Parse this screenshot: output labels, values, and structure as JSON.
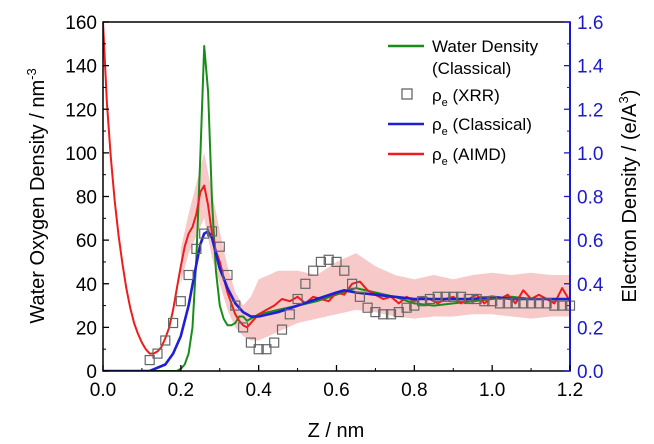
{
  "colors": {
    "water": "#1a8c1a",
    "xrr": "#666666",
    "classical": "#1f1fd6",
    "aimd": "#ee1c1c",
    "aimd_band": "#f6c0c0",
    "right_axis": "#1a1acc"
  },
  "chart_data": {
    "type": "line",
    "xlabel": "Z / nm",
    "ylabel_left": "Water Oxygen Density / nm⁻³",
    "ylabel_left_main": "Water Oxygen Density / nm",
    "ylabel_left_sup": "-3",
    "ylabel_right": "Electron Density / (e/Å³)",
    "ylabel_right_main": "Electron Density / (e/A",
    "ylabel_right_sup": "3",
    "ylabel_right_end": ")",
    "xlim": [
      0,
      1.2
    ],
    "ylim_left": [
      0,
      160
    ],
    "ylim_right": [
      0,
      1.6
    ],
    "x_ticks": [
      "0.0",
      "0.2",
      "0.4",
      "0.6",
      "0.8",
      "1.0",
      "1.2"
    ],
    "y_ticks_left": [
      "0",
      "20",
      "40",
      "60",
      "80",
      "100",
      "120",
      "140",
      "160"
    ],
    "y_ticks_right": [
      "0.0",
      "0.2",
      "0.4",
      "0.6",
      "0.8",
      "1.0",
      "1.2",
      "1.4",
      "1.6"
    ],
    "legend_position": "top-right",
    "legend": [
      {
        "key": "water",
        "line1": "Water Density",
        "line2": "(Classical)",
        "marker": "line"
      },
      {
        "key": "xrr",
        "label": "ρe (XRR)",
        "rho": "ρ",
        "sub": "e",
        "rest": " (XRR)",
        "marker": "square"
      },
      {
        "key": "classical",
        "label": "ρe (Classical)",
        "rho": "ρ",
        "sub": "e",
        "rest": " (Classical)",
        "marker": "line"
      },
      {
        "key": "aimd",
        "label": "ρe (AIMD)",
        "rho": "ρ",
        "sub": "e",
        "rest": " (AIMD)",
        "marker": "line"
      }
    ],
    "series": [
      {
        "name": "Water Density (Classical)",
        "axis": "left",
        "x": [
          0.0,
          0.19,
          0.2,
          0.21,
          0.22,
          0.23,
          0.24,
          0.25,
          0.26,
          0.27,
          0.28,
          0.29,
          0.3,
          0.31,
          0.32,
          0.33,
          0.34,
          0.35,
          0.36,
          0.37,
          0.38,
          0.4,
          0.45,
          0.5,
          0.55,
          0.6,
          0.65,
          0.7,
          0.75,
          0.8,
          0.85,
          0.9,
          0.95,
          1.0,
          1.05,
          1.1,
          1.15,
          1.2
        ],
        "y": [
          0,
          0,
          1,
          3,
          8,
          20,
          52,
          98,
          149,
          128,
          78,
          46,
          30,
          24,
          21,
          21,
          22,
          25,
          25,
          23,
          24,
          26,
          28,
          30,
          32,
          35,
          38,
          36,
          34,
          31,
          30,
          31,
          32,
          33,
          34,
          33,
          33,
          33
        ]
      },
      {
        "name": "ρe (XRR)",
        "axis": "left",
        "x": [
          0.12,
          0.14,
          0.16,
          0.18,
          0.2,
          0.22,
          0.24,
          0.26,
          0.28,
          0.3,
          0.32,
          0.34,
          0.36,
          0.38,
          0.4,
          0.42,
          0.44,
          0.46,
          0.48,
          0.5,
          0.52,
          0.54,
          0.56,
          0.58,
          0.6,
          0.62,
          0.64,
          0.66,
          0.68,
          0.7,
          0.72,
          0.74,
          0.76,
          0.78,
          0.8,
          0.82,
          0.84,
          0.86,
          0.88,
          0.9,
          0.92,
          0.94,
          0.96,
          0.98,
          1.0,
          1.02,
          1.04,
          1.06,
          1.08,
          1.1,
          1.12,
          1.14,
          1.16,
          1.18,
          1.2
        ],
        "y": [
          5,
          8,
          14,
          22,
          32,
          44,
          56,
          63,
          64,
          57,
          44,
          30,
          20,
          13,
          10,
          10,
          13,
          19,
          26,
          33,
          40,
          46,
          50,
          51,
          50,
          46,
          40,
          34,
          29,
          27,
          26,
          26,
          27,
          29,
          30,
          32,
          33,
          34,
          34,
          34,
          34,
          33,
          33,
          32,
          32,
          31,
          31,
          31,
          31,
          31,
          31,
          31,
          30,
          30,
          30
        ]
      },
      {
        "name": "ρe (Classical)",
        "axis": "right",
        "x": [
          0.0,
          0.12,
          0.16,
          0.18,
          0.2,
          0.22,
          0.24,
          0.25,
          0.26,
          0.27,
          0.28,
          0.29,
          0.3,
          0.32,
          0.34,
          0.36,
          0.38,
          0.4,
          0.45,
          0.5,
          0.55,
          0.6,
          0.62,
          0.65,
          0.7,
          0.75,
          0.8,
          0.85,
          0.9,
          0.95,
          1.0,
          1.05,
          1.1,
          1.15,
          1.2
        ],
        "y": [
          0.0,
          0.0,
          0.03,
          0.08,
          0.16,
          0.3,
          0.49,
          0.58,
          0.63,
          0.64,
          0.61,
          0.54,
          0.47,
          0.38,
          0.31,
          0.27,
          0.25,
          0.25,
          0.27,
          0.3,
          0.33,
          0.36,
          0.37,
          0.36,
          0.35,
          0.34,
          0.33,
          0.33,
          0.33,
          0.33,
          0.34,
          0.33,
          0.33,
          0.33,
          0.33
        ]
      },
      {
        "name": "ρe (AIMD)",
        "axis": "left",
        "x": [
          0.0,
          0.01,
          0.02,
          0.03,
          0.04,
          0.05,
          0.06,
          0.07,
          0.08,
          0.09,
          0.1,
          0.11,
          0.12,
          0.13,
          0.14,
          0.15,
          0.16,
          0.17,
          0.18,
          0.19,
          0.2,
          0.21,
          0.22,
          0.23,
          0.24,
          0.25,
          0.26,
          0.27,
          0.28,
          0.29,
          0.3,
          0.31,
          0.32,
          0.33,
          0.34,
          0.35,
          0.36,
          0.37,
          0.38,
          0.39,
          0.4,
          0.42,
          0.44,
          0.46,
          0.48,
          0.5,
          0.52,
          0.54,
          0.56,
          0.58,
          0.6,
          0.62,
          0.64,
          0.66,
          0.68,
          0.7,
          0.72,
          0.74,
          0.76,
          0.78,
          0.8,
          0.82,
          0.84,
          0.86,
          0.88,
          0.9,
          0.92,
          0.94,
          0.96,
          0.98,
          1.0,
          1.02,
          1.04,
          1.06,
          1.08,
          1.1,
          1.12,
          1.14,
          1.16,
          1.18,
          1.2
        ],
        "y": [
          160,
          123,
          98,
          78,
          62,
          49,
          38,
          29,
          22,
          17,
          13,
          10,
          8,
          8,
          9,
          11,
          15,
          20,
          28,
          38,
          48,
          57,
          63,
          66,
          72,
          82,
          85,
          76,
          63,
          55,
          50,
          43,
          36,
          31,
          26,
          23,
          21,
          20,
          22,
          24,
          26,
          28,
          30,
          33,
          32,
          34,
          31,
          34,
          33,
          32,
          36,
          35,
          40,
          41,
          37,
          35,
          33,
          34,
          31,
          34,
          32,
          34,
          33,
          31,
          33,
          34,
          31,
          33,
          35,
          31,
          34,
          33,
          35,
          31,
          37,
          33,
          35,
          33,
          31,
          38,
          32
        ]
      },
      {
        "name": "ρe (AIMD) spread",
        "axis": "left",
        "x": [
          0.2,
          0.22,
          0.24,
          0.26,
          0.28,
          0.3,
          0.32,
          0.34,
          0.36,
          0.38,
          0.4,
          0.45,
          0.5,
          0.55,
          0.6,
          0.65,
          0.7,
          0.75,
          0.8,
          0.85,
          0.9,
          0.95,
          1.0,
          1.05,
          1.1,
          1.15,
          1.2
        ],
        "y_low": [
          40,
          54,
          62,
          70,
          52,
          40,
          28,
          20,
          16,
          14,
          14,
          18,
          22,
          24,
          26,
          28,
          27,
          25,
          24,
          25,
          25,
          26,
          26,
          25,
          24,
          25,
          25
        ],
        "y_high": [
          56,
          72,
          86,
          100,
          82,
          64,
          48,
          36,
          30,
          34,
          42,
          46,
          46,
          44,
          50,
          54,
          48,
          44,
          42,
          44,
          42,
          44,
          45,
          44,
          45,
          44,
          44
        ]
      }
    ]
  }
}
